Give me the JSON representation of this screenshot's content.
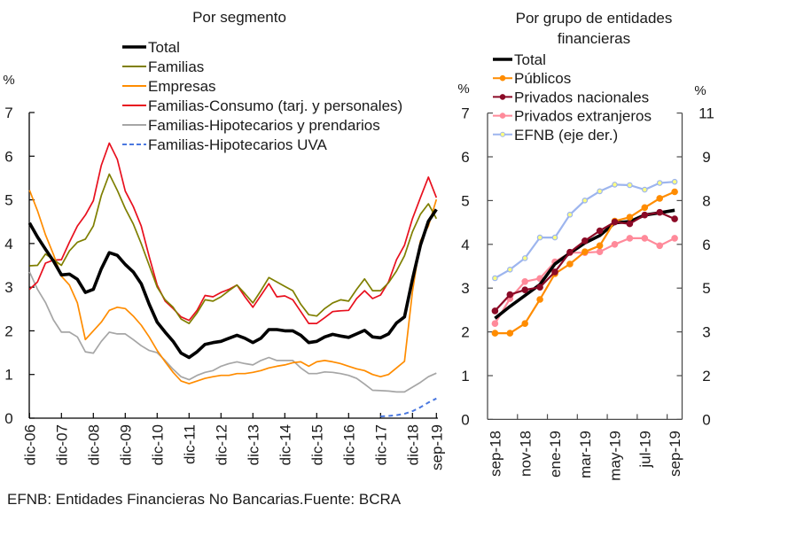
{
  "footnote": "EFNB: Entidades Financieras No Bancarias.Fuente: BCRA",
  "chart_data": [
    {
      "type": "line",
      "title": "Por segmento",
      "ylabel": "%",
      "xlabel": "",
      "ylim": [
        0,
        7
      ],
      "yticks": [
        0,
        1,
        2,
        3,
        4,
        5,
        6,
        7
      ],
      "xlim": [
        "dic-06",
        "sep-19"
      ],
      "xticks": [
        "dic-06",
        "dic-07",
        "dic-08",
        "dic-09",
        "dic-10",
        "dic-11",
        "dic-12",
        "dic-13",
        "dic-14",
        "dic-15",
        "dic-16",
        "dic-17",
        "dic-18",
        "sep-19"
      ],
      "grid": false,
      "legend": "top-center",
      "x": [
        "dic-06",
        "mar-07",
        "jun-07",
        "sep-07",
        "dic-07",
        "mar-08",
        "jun-08",
        "sep-08",
        "dic-08",
        "mar-09",
        "jun-09",
        "sep-09",
        "dic-09",
        "mar-10",
        "jun-10",
        "sep-10",
        "dic-10",
        "mar-11",
        "jun-11",
        "sep-11",
        "dic-11",
        "mar-12",
        "jun-12",
        "sep-12",
        "dic-12",
        "mar-13",
        "jun-13",
        "sep-13",
        "dic-13",
        "mar-14",
        "jun-14",
        "sep-14",
        "dic-14",
        "mar-15",
        "jun-15",
        "sep-15",
        "dic-15",
        "mar-16",
        "jun-16",
        "sep-16",
        "dic-16",
        "mar-17",
        "jun-17",
        "sep-17",
        "dic-17",
        "mar-18",
        "jun-18",
        "sep-18",
        "dic-18",
        "mar-19",
        "jun-19",
        "sep-19"
      ],
      "series": [
        {
          "name": "Total",
          "color": "#000000",
          "bold": true,
          "dashed": false,
          "values": [
            4.47,
            4.15,
            3.87,
            3.6,
            3.28,
            3.3,
            3.18,
            2.88,
            2.95,
            3.42,
            3.79,
            3.73,
            3.52,
            3.35,
            3.08,
            2.61,
            2.2,
            1.97,
            1.76,
            1.49,
            1.39,
            1.52,
            1.69,
            1.73,
            1.76,
            1.83,
            1.9,
            1.83,
            1.73,
            1.83,
            2.03,
            2.03,
            2.0,
            2.0,
            1.9,
            1.73,
            1.76,
            1.86,
            1.92,
            1.88,
            1.85,
            1.93,
            2.01,
            1.86,
            1.84,
            1.93,
            2.18,
            2.32,
            3.18,
            3.96,
            4.51,
            4.78
          ]
        },
        {
          "name": "Familias",
          "color": "#7F7F00",
          "bold": false,
          "dashed": false,
          "values": [
            3.49,
            3.5,
            3.76,
            3.63,
            3.5,
            3.83,
            4.03,
            4.1,
            4.4,
            5.1,
            5.59,
            5.22,
            4.8,
            4.45,
            4.0,
            3.5,
            3.0,
            2.71,
            2.54,
            2.27,
            2.17,
            2.41,
            2.71,
            2.68,
            2.78,
            2.92,
            3.05,
            2.85,
            2.64,
            2.92,
            3.22,
            3.12,
            3.02,
            2.92,
            2.61,
            2.37,
            2.34,
            2.51,
            2.64,
            2.71,
            2.68,
            2.95,
            3.19,
            2.92,
            2.92,
            3.1,
            3.37,
            3.72,
            4.27,
            4.67,
            4.91,
            4.57
          ]
        },
        {
          "name": "Empresas",
          "color": "#FF8C00",
          "bold": false,
          "dashed": false,
          "values": [
            5.22,
            4.75,
            4.2,
            3.75,
            3.25,
            3.05,
            2.64,
            1.8,
            2.0,
            2.2,
            2.47,
            2.54,
            2.51,
            2.34,
            2.13,
            1.86,
            1.55,
            1.29,
            1.05,
            0.85,
            0.79,
            0.85,
            0.91,
            0.95,
            0.98,
            0.98,
            1.02,
            1.02,
            1.05,
            1.09,
            1.15,
            1.19,
            1.22,
            1.27,
            1.29,
            1.19,
            1.29,
            1.32,
            1.29,
            1.25,
            1.19,
            1.13,
            1.09,
            1.0,
            0.95,
            1.0,
            1.15,
            1.3,
            2.9,
            4.06,
            4.4,
            5.01
          ]
        },
        {
          "name": "Familias-Consumo (tarj. y personales)",
          "color": "#E8101E",
          "bold": false,
          "dashed": false,
          "values": [
            2.95,
            3.12,
            3.55,
            3.62,
            3.63,
            4.03,
            4.4,
            4.65,
            4.98,
            5.79,
            6.3,
            5.93,
            5.2,
            4.85,
            4.4,
            3.7,
            3.05,
            2.68,
            2.51,
            2.32,
            2.24,
            2.47,
            2.81,
            2.78,
            2.88,
            2.95,
            3.05,
            2.78,
            2.54,
            2.81,
            3.08,
            2.78,
            2.8,
            2.71,
            2.44,
            2.17,
            2.17,
            2.3,
            2.44,
            2.46,
            2.47,
            2.74,
            2.92,
            2.74,
            2.82,
            3.12,
            3.63,
            3.96,
            4.57,
            5.05,
            5.52,
            5.05
          ]
        },
        {
          "name": "Familias-Hipotecarios y prendarios",
          "color": "#A6A6A6",
          "bold": false,
          "dashed": false,
          "values": [
            3.35,
            2.95,
            2.65,
            2.25,
            1.97,
            1.97,
            1.86,
            1.52,
            1.49,
            1.76,
            1.97,
            1.93,
            1.93,
            1.8,
            1.66,
            1.55,
            1.5,
            1.32,
            1.12,
            0.95,
            0.88,
            0.98,
            1.05,
            1.09,
            1.19,
            1.25,
            1.29,
            1.25,
            1.22,
            1.32,
            1.39,
            1.32,
            1.32,
            1.32,
            1.15,
            1.02,
            1.02,
            1.06,
            1.05,
            1.02,
            0.98,
            0.91,
            0.78,
            0.64,
            0.63,
            0.62,
            0.6,
            0.6,
            0.71,
            0.82,
            0.95,
            1.03
          ]
        },
        {
          "name": "Familias-Hipotecarios UVA",
          "color": "#4A78E0",
          "bold": false,
          "dashed": true,
          "values": [
            null,
            null,
            null,
            null,
            null,
            null,
            null,
            null,
            null,
            null,
            null,
            null,
            null,
            null,
            null,
            null,
            null,
            null,
            null,
            null,
            null,
            null,
            null,
            null,
            null,
            null,
            null,
            null,
            null,
            null,
            null,
            null,
            null,
            null,
            null,
            null,
            null,
            null,
            null,
            null,
            null,
            null,
            null,
            null,
            0.04,
            0.05,
            0.07,
            0.1,
            0.16,
            0.25,
            0.36,
            0.45
          ]
        }
      ]
    },
    {
      "type": "line",
      "title": "Por grupo de entidades financieras",
      "title_lines": [
        "Por grupo de entidades",
        "financieras"
      ],
      "ylabel": "%",
      "y2label": "%",
      "xlabel": "",
      "ylim": [
        0,
        7
      ],
      "yticks": [
        0,
        1,
        2,
        3,
        4,
        5,
        6,
        7
      ],
      "y2lim": [
        0,
        11
      ],
      "y2ticks": [
        "0",
        "2",
        "3",
        "5",
        "6",
        "8",
        "9",
        "11"
      ],
      "grid": false,
      "legend": "top-left",
      "x": [
        "sep-18",
        "oct-18",
        "nov-18",
        "dic-18",
        "ene-19",
        "feb-19",
        "mar-19",
        "abr-19",
        "may-19",
        "jun-19",
        "jul-19",
        "ago-19",
        "sep-19"
      ],
      "xticks": [
        "sep-18",
        "nov-18",
        "ene-19",
        "mar-19",
        "may-19",
        "jul-19",
        "sep-19"
      ],
      "series": [
        {
          "name": "Total",
          "color": "#000000",
          "axis": "left",
          "marker": "none",
          "bold": true,
          "values": [
            2.31,
            2.58,
            2.83,
            3.08,
            3.55,
            3.8,
            4.03,
            4.2,
            4.49,
            4.52,
            4.67,
            4.72,
            4.78
          ]
        },
        {
          "name": "Públicos",
          "color": "#FF8C00",
          "axis": "left",
          "marker": "circle",
          "bold": false,
          "values": [
            1.97,
            1.97,
            2.19,
            2.74,
            3.33,
            3.55,
            3.83,
            3.97,
            4.53,
            4.62,
            4.84,
            5.05,
            5.2
          ]
        },
        {
          "name": "Privados nacionales",
          "color": "#8B0A26",
          "axis": "left",
          "marker": "circle",
          "bold": false,
          "values": [
            2.48,
            2.85,
            2.96,
            3.02,
            3.37,
            3.82,
            4.08,
            4.31,
            4.51,
            4.47,
            4.67,
            4.73,
            4.58
          ]
        },
        {
          "name": "Privados extranjeros",
          "color": "#FF8A9A",
          "axis": "left",
          "marker": "circle",
          "bold": false,
          "values": [
            2.19,
            2.76,
            3.15,
            3.22,
            3.6,
            3.81,
            3.81,
            3.83,
            4.0,
            4.14,
            4.14,
            3.97,
            4.14
          ]
        },
        {
          "name": "EFNB (eje der.)",
          "color": "#9DB5EE",
          "marker_fill": "#FFFF80",
          "axis": "right",
          "marker": "circle",
          "bold": false,
          "values": [
            5.07,
            5.38,
            5.79,
            6.53,
            6.53,
            7.35,
            7.86,
            8.19,
            8.43,
            8.41,
            8.25,
            8.49,
            8.53
          ]
        }
      ]
    }
  ]
}
